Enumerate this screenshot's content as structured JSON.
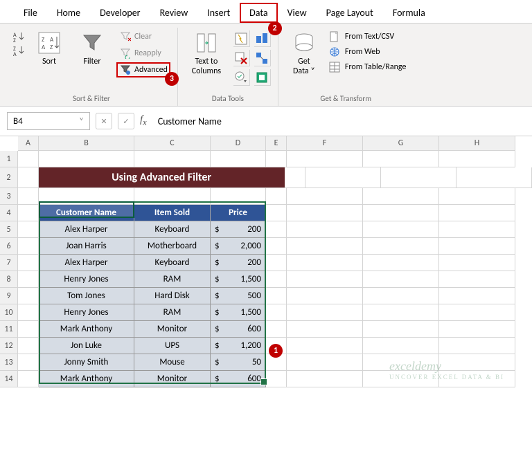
{
  "tabs": [
    "File",
    "Home",
    "Developer",
    "Review",
    "Insert",
    "Data",
    "View",
    "Page Layout",
    "Formula"
  ],
  "active_tab_index": 5,
  "ribbon": {
    "sort_filter": {
      "sort": "Sort",
      "filter": "Filter",
      "clear": "Clear",
      "reapply": "Reapply",
      "advanced": "Advanced",
      "group_label": "Sort & Filter"
    },
    "data_tools": {
      "text_to_columns": "Text to\nColumns",
      "group_label": "Data Tools"
    },
    "get_transform": {
      "get_data": "Get\nData",
      "from_text_csv": "From Text/CSV",
      "from_web": "From Web",
      "from_table": "From Table/Range",
      "group_label": "Get & Transform"
    }
  },
  "badges": {
    "b1": "1",
    "b2": "2",
    "b3": "3"
  },
  "namebox": "B4",
  "formula": "Customer Name",
  "columns": [
    "A",
    "B",
    "C",
    "D",
    "E",
    "F",
    "G",
    "H"
  ],
  "banner_title": "Using Advanced Filter",
  "table": {
    "headers": [
      "Customer Name",
      "Item Sold",
      "Price"
    ],
    "rows": [
      {
        "name": "Alex Harper",
        "item": "Keyboard",
        "cur": "$",
        "price": "200"
      },
      {
        "name": "Joan Harris",
        "item": "Motherboard",
        "cur": "$",
        "price": "2,000"
      },
      {
        "name": "Alex Harper",
        "item": "Keyboard",
        "cur": "$",
        "price": "200"
      },
      {
        "name": "Henry Jones",
        "item": "RAM",
        "cur": "$",
        "price": "1,500"
      },
      {
        "name": "Tom Jones",
        "item": "Hard Disk",
        "cur": "$",
        "price": "500"
      },
      {
        "name": "Henry Jones",
        "item": "RAM",
        "cur": "$",
        "price": "1,500"
      },
      {
        "name": "Mark Anthony",
        "item": "Monitor",
        "cur": "$",
        "price": "600"
      },
      {
        "name": "Jon Luke",
        "item": "UPS",
        "cur": "$",
        "price": "1,200"
      },
      {
        "name": "Jonny Smith",
        "item": "Mouse",
        "cur": "$",
        "price": "50"
      },
      {
        "name": "Mark Anthony",
        "item": "Monitor",
        "cur": "$",
        "price": "600"
      }
    ]
  },
  "colors": {
    "accent": "#217346",
    "highlight": "#d00000",
    "badge": "#c00000",
    "table_header_bg": "#2f5496",
    "table_cell_bg": "#d6dce4",
    "banner_bg": "#632428"
  },
  "watermark": {
    "brand": "exceldemy",
    "tag": "UNCOVER EXCEL DATA & BI"
  }
}
